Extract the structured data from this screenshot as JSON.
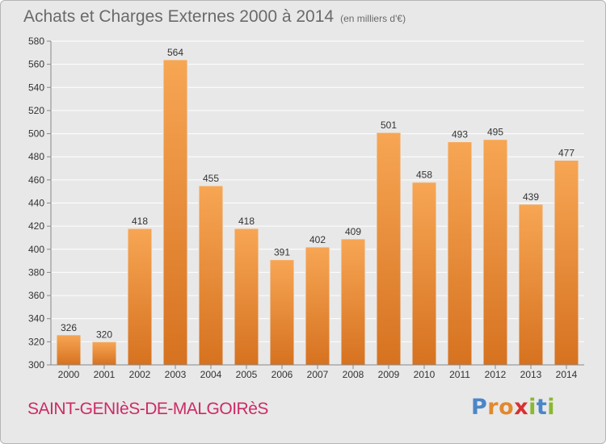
{
  "title": "Achats et Charges Externes 2000 à 2014",
  "subtitle": "(en milliers d'€)",
  "city": "SAINT-GENIèS-DE-MALGOIRèS",
  "logo": {
    "letters": [
      "P",
      "r",
      "o",
      "x",
      "i",
      "t",
      "i"
    ],
    "colors": [
      "#4a86c8",
      "#e2892d",
      "#e2892d",
      "#d83030",
      "#8ab832",
      "#4a86c8",
      "#8ab832"
    ]
  },
  "colors": {
    "bar_top": "#f7a654",
    "bar_bottom": "#d67220",
    "grid": "#ffffff",
    "axis_text": "#333333"
  },
  "chart_data": {
    "type": "bar",
    "categories": [
      "2000",
      "2001",
      "2002",
      "2003",
      "2004",
      "2005",
      "2006",
      "2007",
      "2008",
      "2009",
      "2010",
      "2011",
      "2012",
      "2013",
      "2014"
    ],
    "values": [
      326,
      320,
      418,
      564,
      455,
      418,
      391,
      402,
      409,
      501,
      458,
      493,
      495,
      439,
      477
    ],
    "yticks": [
      300,
      320,
      340,
      360,
      380,
      400,
      420,
      440,
      460,
      480,
      500,
      520,
      540,
      560,
      580
    ],
    "ylim": [
      300,
      580
    ],
    "grid": true,
    "data_labels": true
  }
}
